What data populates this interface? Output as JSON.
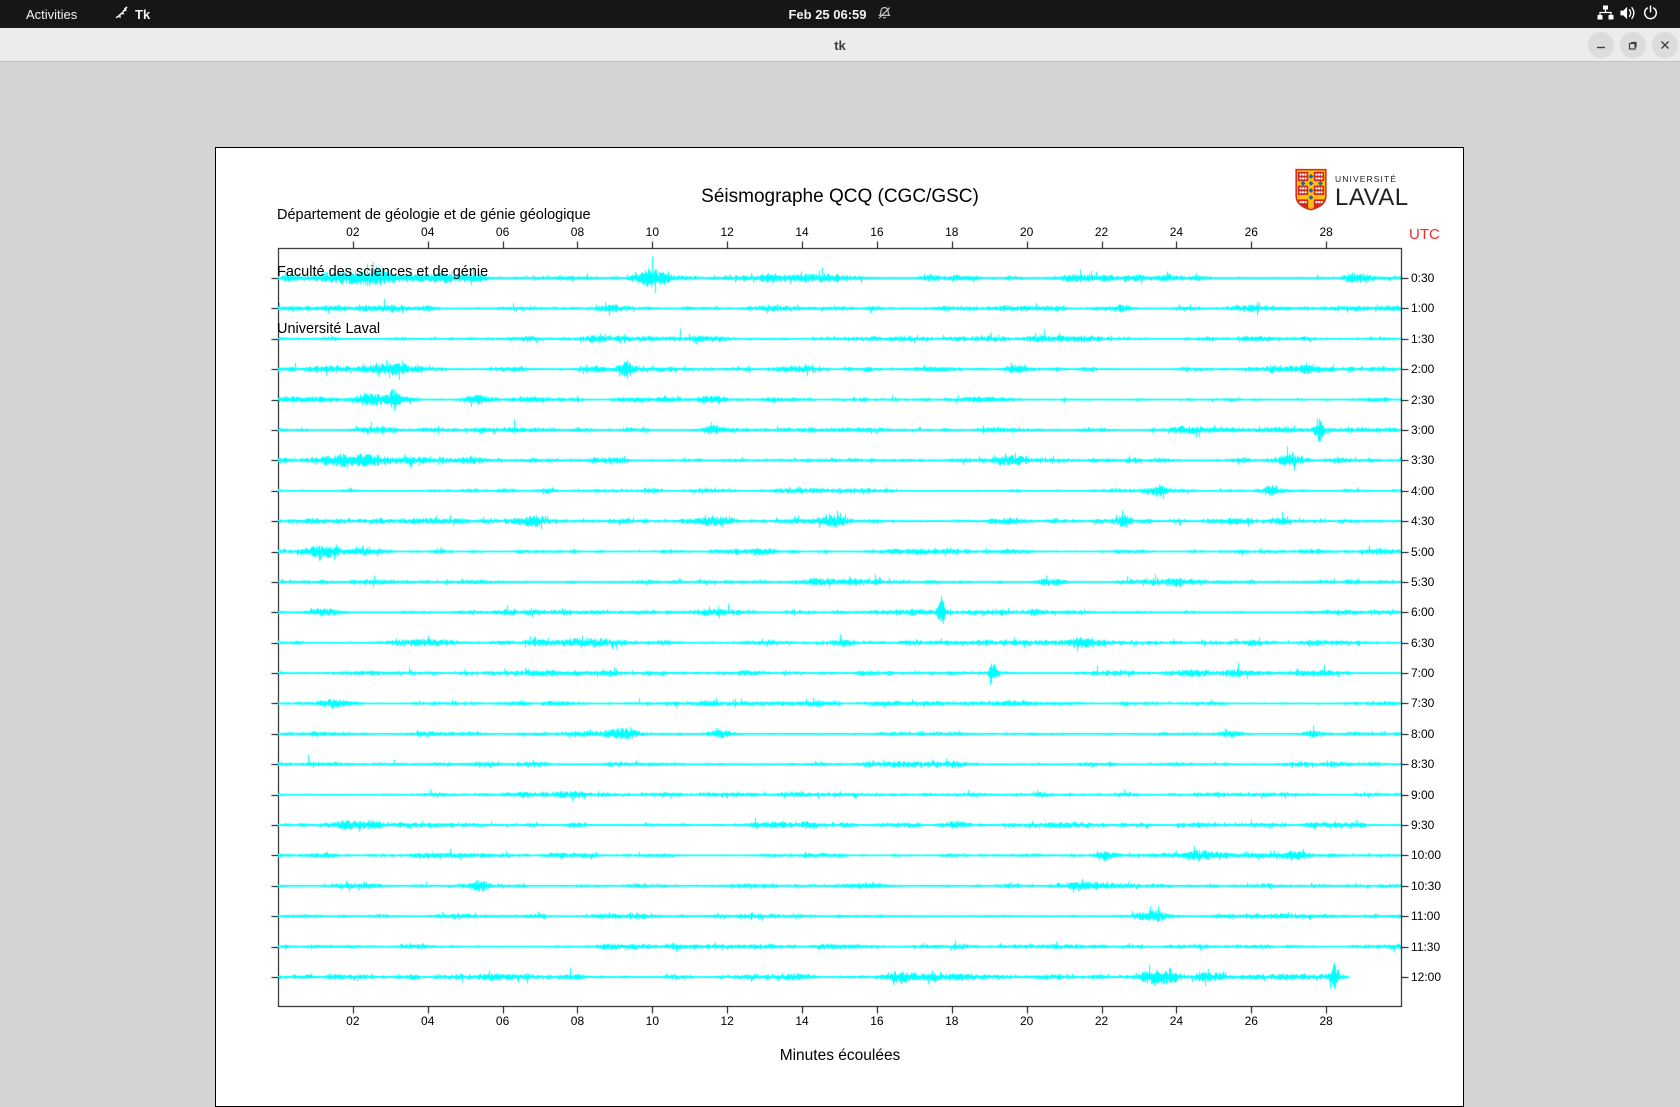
{
  "topbar": {
    "activities_label": "Activities",
    "app_indicator_label": "Tk",
    "clock": "Feb 25  06:59"
  },
  "titlebar": {
    "title": "tk"
  },
  "panel": {
    "header_lines": [
      "Département de géologie et de génie géologique",
      "Faculté des sciences et de génie",
      "Université Laval"
    ],
    "title": "Séismographe QCQ (CGC/GSC)",
    "logo_line1": "UNIVERSITÉ",
    "logo_line2": "LAVAL",
    "utc_label": "UTC",
    "xlabel": "Minutes écoulées"
  },
  "chart_data": {
    "type": "seismograph-helicorder",
    "station": "QCQ (CGC/GSC)",
    "x_unit": "minutes",
    "x_range": [
      0,
      30
    ],
    "x_tick_step": 2,
    "x_tick_labels": [
      "02",
      "04",
      "06",
      "08",
      "10",
      "12",
      "14",
      "16",
      "18",
      "20",
      "22",
      "24",
      "26",
      "28"
    ],
    "trace_color": "#00ffff",
    "utc_color": "#f32b2b",
    "rows": [
      {
        "label": "0:30",
        "amp": 2.6,
        "end": 30,
        "events": [
          {
            "m": 2.3,
            "a": 4,
            "w": 0.8
          },
          {
            "m": 10.0,
            "a": 6,
            "w": 0.35
          },
          {
            "m": 13.2,
            "a": 2,
            "w": 0.6
          },
          {
            "m": 21.3,
            "a": 3,
            "w": 0.5
          },
          {
            "m": 28.8,
            "a": 2.5,
            "w": 0.3
          }
        ]
      },
      {
        "label": "1:00",
        "amp": 2.0,
        "end": 30,
        "events": [
          {
            "m": 8.9,
            "a": 2.5,
            "w": 0.4
          },
          {
            "m": 22.5,
            "a": 2,
            "w": 0.3
          }
        ]
      },
      {
        "label": "1:30",
        "amp": 1.9,
        "end": 30,
        "events": [
          {
            "m": 8.4,
            "a": 2,
            "w": 0.4
          },
          {
            "m": 17.0,
            "a": 1.5,
            "w": 0.5
          }
        ]
      },
      {
        "label": "2:00",
        "amp": 2.2,
        "end": 30,
        "events": [
          {
            "m": 2.8,
            "a": 3.5,
            "w": 0.9
          },
          {
            "m": 9.3,
            "a": 5,
            "w": 0.15
          },
          {
            "m": 19.8,
            "a": 2,
            "w": 0.4
          },
          {
            "m": 27.5,
            "a": 2.5,
            "w": 0.4
          }
        ]
      },
      {
        "label": "2:30",
        "amp": 2.2,
        "end": 30,
        "events": [
          {
            "m": 2.5,
            "a": 3,
            "w": 0.7
          },
          {
            "m": 3.1,
            "a": 8,
            "w": 0.12
          },
          {
            "m": 5.4,
            "a": 3,
            "w": 0.3
          },
          {
            "m": 11.4,
            "a": 3,
            "w": 0.25
          }
        ]
      },
      {
        "label": "3:00",
        "amp": 2.0,
        "end": 30,
        "events": [
          {
            "m": 2.5,
            "a": 2.5,
            "w": 0.5
          },
          {
            "m": 11.6,
            "a": 2.5,
            "w": 0.3
          },
          {
            "m": 24.3,
            "a": 3,
            "w": 0.6
          },
          {
            "m": 27.8,
            "a": 9,
            "w": 0.12
          }
        ]
      },
      {
        "label": "3:30",
        "amp": 2.1,
        "end": 30,
        "events": [
          {
            "m": 2.0,
            "a": 3.5,
            "w": 0.8
          },
          {
            "m": 9.1,
            "a": 2,
            "w": 0.3
          },
          {
            "m": 19.5,
            "a": 2.5,
            "w": 0.4
          },
          {
            "m": 27.0,
            "a": 3.5,
            "w": 0.3
          }
        ]
      },
      {
        "label": "4:00",
        "amp": 1.9,
        "end": 30,
        "events": [
          {
            "m": 7.2,
            "a": 2,
            "w": 0.3
          },
          {
            "m": 23.5,
            "a": 2.5,
            "w": 0.3
          },
          {
            "m": 26.5,
            "a": 3,
            "w": 0.25
          }
        ]
      },
      {
        "label": "4:30",
        "amp": 2.0,
        "end": 30,
        "events": [
          {
            "m": 6.8,
            "a": 3,
            "w": 0.5
          },
          {
            "m": 11.7,
            "a": 3,
            "w": 0.4
          },
          {
            "m": 14.8,
            "a": 2.5,
            "w": 0.4
          },
          {
            "m": 19.5,
            "a": 2,
            "w": 0.3
          },
          {
            "m": 22.6,
            "a": 4,
            "w": 0.2
          },
          {
            "m": 26.8,
            "a": 2.5,
            "w": 0.3
          }
        ]
      },
      {
        "label": "5:00",
        "amp": 2.0,
        "end": 30,
        "events": [
          {
            "m": 1.3,
            "a": 4,
            "w": 0.5
          },
          {
            "m": 2.3,
            "a": 3,
            "w": 0.4
          }
        ]
      },
      {
        "label": "5:30",
        "amp": 1.8,
        "end": 30,
        "events": [
          {
            "m": 14.3,
            "a": 2,
            "w": 0.4
          },
          {
            "m": 20.6,
            "a": 2.5,
            "w": 0.4
          },
          {
            "m": 24.0,
            "a": 2,
            "w": 0.3
          }
        ]
      },
      {
        "label": "6:00",
        "amp": 1.8,
        "end": 30,
        "events": [
          {
            "m": 1.2,
            "a": 3,
            "w": 0.5
          },
          {
            "m": 17.7,
            "a": 13,
            "w": 0.1
          },
          {
            "m": 20.2,
            "a": 2,
            "w": 0.3
          }
        ]
      },
      {
        "label": "6:30",
        "amp": 2.0,
        "end": 30,
        "events": [
          {
            "m": 3.9,
            "a": 3,
            "w": 1.0
          },
          {
            "m": 15.2,
            "a": 2.5,
            "w": 0.3
          },
          {
            "m": 21.4,
            "a": 2,
            "w": 0.3
          }
        ]
      },
      {
        "label": "7:00",
        "amp": 1.8,
        "end": 30,
        "events": [
          {
            "m": 19.1,
            "a": 11,
            "w": 0.1
          },
          {
            "m": 25.6,
            "a": 2,
            "w": 0.3
          }
        ]
      },
      {
        "label": "7:30",
        "amp": 1.8,
        "end": 30,
        "events": [
          {
            "m": 1.5,
            "a": 3.5,
            "w": 0.5
          },
          {
            "m": 16.2,
            "a": 1.5,
            "w": 0.4
          }
        ]
      },
      {
        "label": "8:00",
        "amp": 1.8,
        "end": 30,
        "events": [
          {
            "m": 9.1,
            "a": 3,
            "w": 0.4
          },
          {
            "m": 11.8,
            "a": 3.5,
            "w": 0.35
          },
          {
            "m": 25.4,
            "a": 2.5,
            "w": 0.4
          },
          {
            "m": 27.6,
            "a": 2,
            "w": 0.3
          }
        ]
      },
      {
        "label": "8:30",
        "amp": 1.7,
        "end": 30,
        "events": [
          {
            "m": 5.5,
            "a": 1.5,
            "w": 0.4
          },
          {
            "m": 18.0,
            "a": 1.2,
            "w": 0.5
          }
        ]
      },
      {
        "label": "9:00",
        "amp": 1.8,
        "end": 30,
        "events": [
          {
            "m": 7.6,
            "a": 2,
            "w": 0.4
          },
          {
            "m": 20.4,
            "a": 2,
            "w": 0.3
          }
        ]
      },
      {
        "label": "9:30",
        "amp": 2.0,
        "end": 30,
        "events": [
          {
            "m": 2.1,
            "a": 3.5,
            "w": 0.6
          },
          {
            "m": 14.2,
            "a": 2,
            "w": 0.3
          }
        ]
      },
      {
        "label": "10:00",
        "amp": 1.8,
        "end": 30,
        "events": [
          {
            "m": 22.1,
            "a": 2.5,
            "w": 0.3
          },
          {
            "m": 24.6,
            "a": 2.5,
            "w": 0.3
          },
          {
            "m": 27.1,
            "a": 2.5,
            "w": 0.3
          }
        ]
      },
      {
        "label": "10:30",
        "amp": 1.8,
        "end": 30,
        "events": [
          {
            "m": 5.4,
            "a": 3.5,
            "w": 0.3
          }
        ]
      },
      {
        "label": "11:00",
        "amp": 1.8,
        "end": 30,
        "events": [
          {
            "m": 23.4,
            "a": 3.5,
            "w": 0.4
          }
        ]
      },
      {
        "label": "11:30",
        "amp": 1.8,
        "end": 30,
        "events": []
      },
      {
        "label": "12:00",
        "amp": 2.4,
        "end": 28.6,
        "events": [
          {
            "m": 16.6,
            "a": 2.5,
            "w": 0.4
          },
          {
            "m": 23.5,
            "a": 5,
            "w": 0.5
          },
          {
            "m": 24.8,
            "a": 3,
            "w": 0.4
          },
          {
            "m": 28.2,
            "a": 10,
            "w": 0.1
          }
        ]
      }
    ]
  }
}
